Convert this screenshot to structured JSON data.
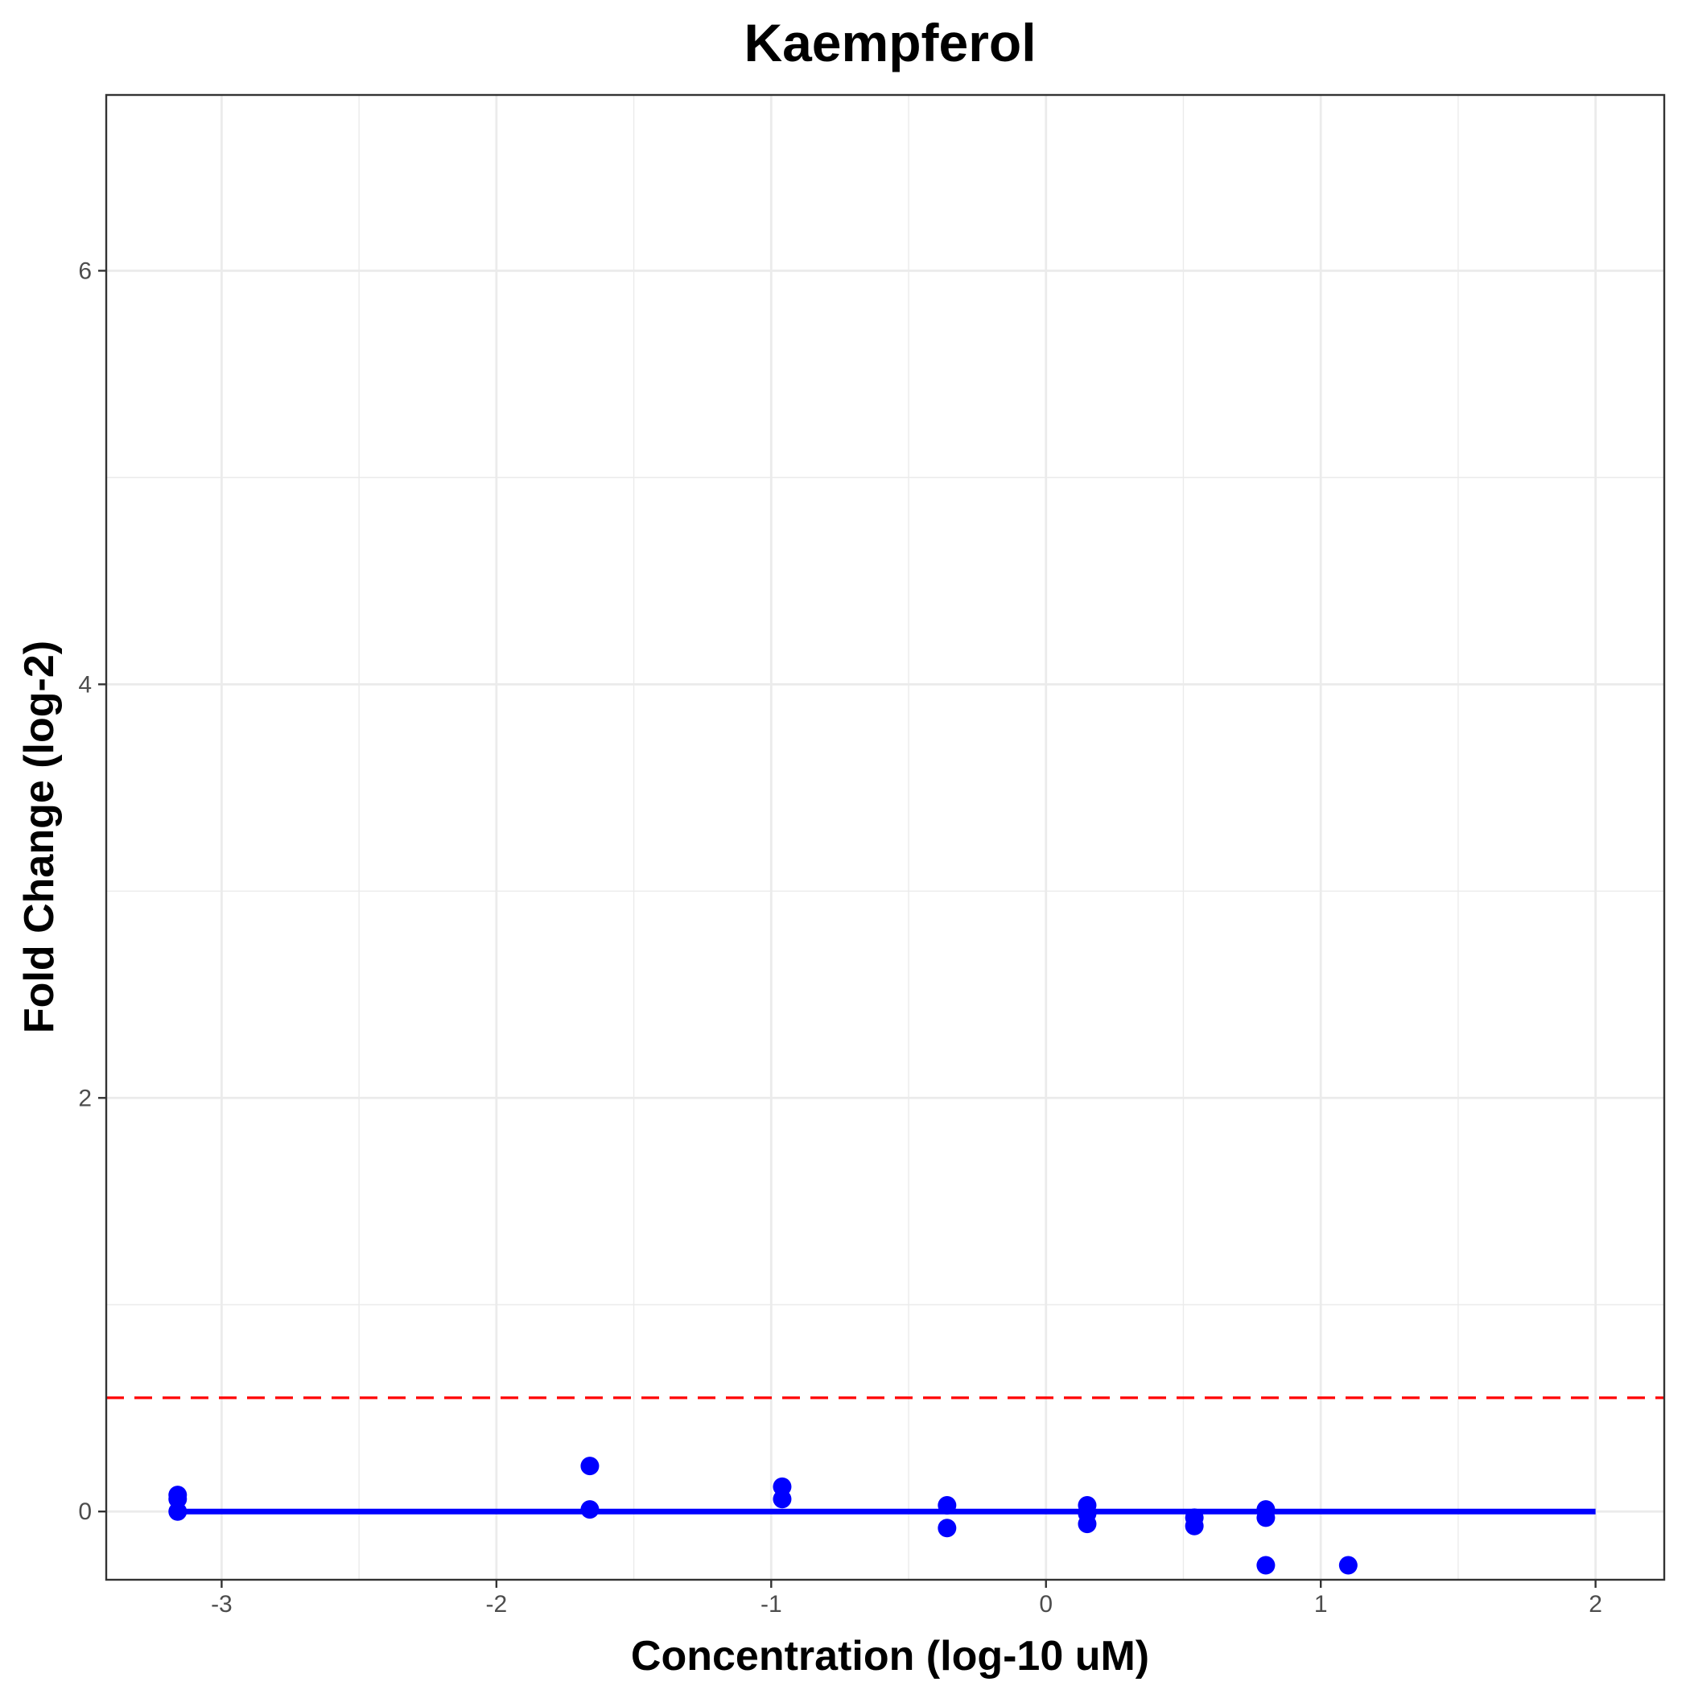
{
  "chart_data": {
    "type": "scatter",
    "title": "Kaempferol",
    "xlabel": "Concentration (log-10 uM)",
    "ylabel": "Fold Change (log-2)",
    "xlim": [
      -3.42,
      2.25
    ],
    "ylim": [
      -0.33,
      6.85
    ],
    "x_ticks": [
      -3,
      -2,
      -1,
      0,
      1,
      2
    ],
    "y_ticks": [
      0,
      2,
      4,
      6
    ],
    "x_tick_labels": [
      "-3",
      "-2",
      "-1",
      "0",
      "1",
      "2"
    ],
    "y_tick_labels": [
      "0",
      "2",
      "4",
      "6"
    ],
    "grid": true,
    "legend": "none",
    "series": [
      {
        "marker": "point",
        "color": "#0000ff",
        "points": [
          {
            "x": -3.16,
            "y": 0.08
          },
          {
            "x": -3.16,
            "y": 0.06
          },
          {
            "x": -3.16,
            "y": 0.0
          },
          {
            "x": -1.66,
            "y": 0.22
          },
          {
            "x": -1.66,
            "y": 0.01
          },
          {
            "x": -0.96,
            "y": 0.12
          },
          {
            "x": -0.96,
            "y": 0.06
          },
          {
            "x": -0.36,
            "y": 0.03
          },
          {
            "x": -0.36,
            "y": -0.08
          },
          {
            "x": 0.15,
            "y": 0.03
          },
          {
            "x": 0.15,
            "y": -0.01
          },
          {
            "x": 0.15,
            "y": -0.06
          },
          {
            "x": 0.54,
            "y": -0.03
          },
          {
            "x": 0.54,
            "y": -0.07
          },
          {
            "x": 0.8,
            "y": 0.01
          },
          {
            "x": 0.8,
            "y": -0.03
          },
          {
            "x": 0.8,
            "y": -0.26
          },
          {
            "x": 1.1,
            "y": -0.26
          }
        ]
      }
    ],
    "fit_line": {
      "x": [
        -3.16,
        2.0
      ],
      "y": [
        0.0,
        0.0
      ],
      "color": "#0000ff"
    },
    "threshold_line": {
      "y": 0.55,
      "color": "#ff0000",
      "style": "dashed"
    }
  }
}
